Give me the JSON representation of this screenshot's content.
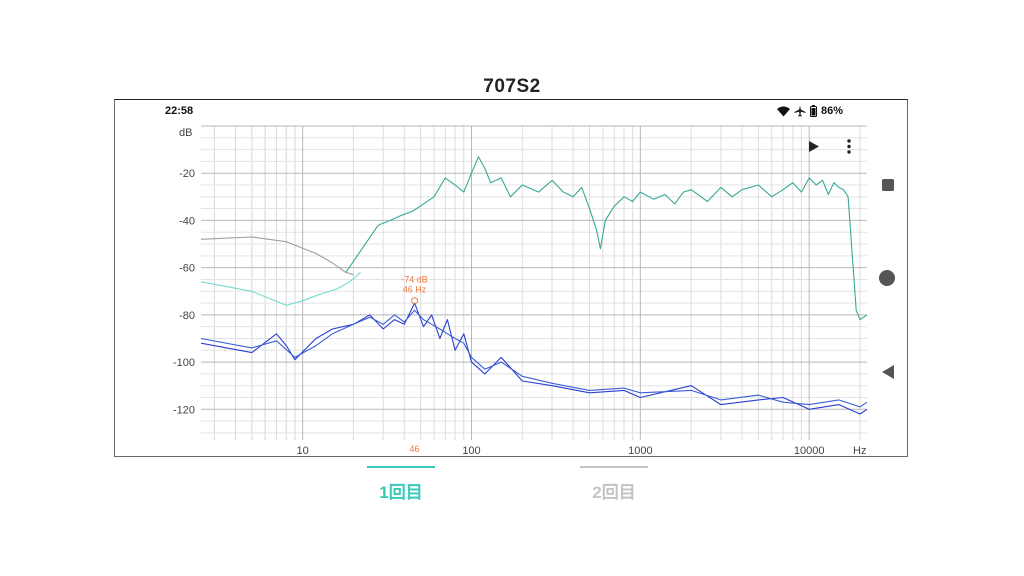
{
  "page": {
    "title": "707S2"
  },
  "status_bar": {
    "time": "22:58",
    "battery": "86%",
    "icons": [
      "wifi-icon",
      "airplane-icon",
      "battery-icon"
    ]
  },
  "toolbar": {
    "icons": [
      "play-icon",
      "more-vert-icon"
    ]
  },
  "nav_bar": {
    "icons": [
      "square-stop-icon",
      "circle-home-icon",
      "triangle-back-icon"
    ]
  },
  "tabs": [
    {
      "label": "1回目",
      "active": true,
      "color": "#35c9b8"
    },
    {
      "label": "2回目",
      "active": false,
      "color": "#c4c4c4"
    }
  ],
  "chart_data": {
    "type": "line",
    "x_scale": "log",
    "xlim": [
      2.5,
      22000
    ],
    "ylim": [
      -133,
      0
    ],
    "ylabel": "dB",
    "xunit": "Hz",
    "x_ticks": [
      10,
      100,
      1000,
      10000
    ],
    "x_tick_labels": [
      "10",
      "100",
      "1000",
      "10000"
    ],
    "y_ticks": [
      -20,
      -40,
      -60,
      -80,
      -100,
      -120
    ],
    "y_tick_labels": [
      "-20",
      "-40",
      "-60",
      "-80",
      "-100",
      "-120"
    ],
    "grid": true,
    "marker": {
      "freq": 46,
      "level": -74,
      "label_db": "-74 dB",
      "label_hz": "46 Hz",
      "axis_label": "46",
      "color": "#f07840"
    },
    "series": [
      {
        "color": "#9e9e9e",
        "x": [
          2.5,
          5,
          8,
          12,
          15,
          18,
          20
        ],
        "y": [
          -48,
          -47,
          -49,
          -54,
          -58,
          -62,
          -63
        ]
      },
      {
        "color": "#6fdcce",
        "x": [
          2.5,
          5,
          8,
          10,
          13,
          16,
          19,
          22
        ],
        "y": [
          -66,
          -70,
          -76,
          -74,
          -71,
          -69,
          -66,
          -62
        ]
      },
      {
        "color": "#3aa898",
        "x": [
          18,
          22,
          28,
          33,
          38,
          45,
          52,
          60,
          70,
          80,
          90,
          100,
          110,
          120,
          130,
          150,
          170,
          200,
          250,
          300,
          350,
          400,
          450,
          500,
          550,
          580,
          620,
          700,
          800,
          900,
          1000,
          1200,
          1400,
          1600,
          1800,
          2000,
          2500,
          3000,
          3500,
          4000,
          5000,
          6000,
          7000,
          8000,
          9000,
          10000,
          11000,
          12000,
          13000,
          14000,
          15000,
          16000,
          17000,
          18000,
          19000,
          20000,
          22000
        ],
        "y": [
          -62,
          -53,
          -42,
          -40,
          -38,
          -36,
          -33,
          -30,
          -22,
          -25,
          -28,
          -20,
          -13,
          -18,
          -24,
          -22,
          -30,
          -25,
          -28,
          -23,
          -28,
          -30,
          -26,
          -35,
          -44,
          -52,
          -40,
          -34,
          -30,
          -32,
          -28,
          -31,
          -29,
          -33,
          -28,
          -27,
          -32,
          -26,
          -30,
          -27,
          -25,
          -30,
          -27,
          -24,
          -28,
          -22,
          -25,
          -23,
          -29,
          -24,
          -26,
          -27,
          -30,
          -55,
          -78,
          -82,
          -80
        ]
      },
      {
        "color": "#2a3fd0",
        "x": [
          2.5,
          5,
          7,
          8,
          9,
          12,
          15,
          20,
          25,
          30,
          35,
          40,
          46,
          52,
          58,
          65,
          72,
          80,
          90,
          100,
          120,
          150,
          200,
          300,
          500,
          800,
          1000,
          2000,
          3000,
          5000,
          7000,
          10000,
          15000,
          20000,
          22000
        ],
        "y": [
          -92,
          -96,
          -88,
          -93,
          -99,
          -90,
          -86,
          -84,
          -80,
          -86,
          -82,
          -84,
          -75,
          -85,
          -80,
          -90,
          -82,
          -95,
          -88,
          -100,
          -105,
          -98,
          -108,
          -110,
          -113,
          -112,
          -115,
          -110,
          -118,
          -116,
          -115,
          -120,
          -118,
          -122,
          -120
        ]
      },
      {
        "color": "#3b5ed6",
        "x": [
          2.5,
          5,
          7,
          9,
          12,
          15,
          20,
          25,
          30,
          35,
          40,
          46,
          52,
          58,
          65,
          72,
          80,
          90,
          100,
          120,
          150,
          200,
          300,
          500,
          800,
          1000,
          2000,
          3000,
          5000,
          7000,
          10000,
          15000,
          20000,
          22000
        ],
        "y": [
          -90,
          -94,
          -91,
          -98,
          -93,
          -88,
          -84,
          -81,
          -84,
          -80,
          -83,
          -78,
          -82,
          -84,
          -86,
          -88,
          -90,
          -92,
          -98,
          -103,
          -100,
          -106,
          -109,
          -112,
          -111,
          -113,
          -112,
          -116,
          -114,
          -117,
          -118,
          -116,
          -119,
          -117
        ]
      }
    ]
  }
}
